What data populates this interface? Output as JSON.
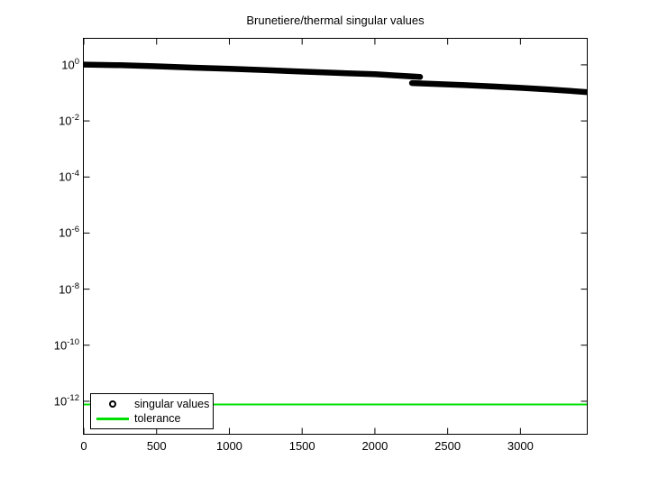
{
  "chart_data": {
    "type": "line",
    "title": "Brunetiere/thermal singular values",
    "xlabel": "",
    "ylabel": "",
    "yscale": "log",
    "grid": false,
    "legend_position": "bottom-left",
    "xlim": [
      0,
      3456
    ],
    "ylim_log10": [
      -13.16,
      0.93
    ],
    "x_ticks": [
      0,
      500,
      1000,
      1500,
      2000,
      2500,
      3000
    ],
    "y_tick_exponents": [
      0,
      -2,
      -4,
      -6,
      -8,
      -10,
      -12
    ],
    "y_tick_base": "10",
    "series": [
      {
        "name": "singular values",
        "style": "thick-marker-band",
        "marker": "open-circle",
        "color": "#000000",
        "segments": [
          [
            [
              0,
              1.02
            ],
            [
              250,
              0.97
            ],
            [
              500,
              0.891
            ],
            [
              750,
              0.794
            ],
            [
              1000,
              0.724
            ],
            [
              1250,
              0.646
            ],
            [
              1500,
              0.575
            ],
            [
              1750,
              0.513
            ],
            [
              2000,
              0.462
            ],
            [
              2150,
              0.417
            ],
            [
              2310,
              0.372
            ]
          ],
          [
            [
              2255,
              0.224
            ],
            [
              2400,
              0.209
            ],
            [
              2600,
              0.191
            ],
            [
              2800,
              0.17
            ],
            [
              3000,
              0.151
            ],
            [
              3200,
              0.132
            ],
            [
              3456,
              0.107
            ]
          ]
        ],
        "drop_at_index": 2300
      },
      {
        "name": "tolerance",
        "style": "hline",
        "color": "#00e000",
        "value": 7.7e-13
      }
    ],
    "colors": {
      "curve": "#000000",
      "tolerance_line": "#00e000",
      "axis": "#000000",
      "background": "#ffffff"
    }
  }
}
